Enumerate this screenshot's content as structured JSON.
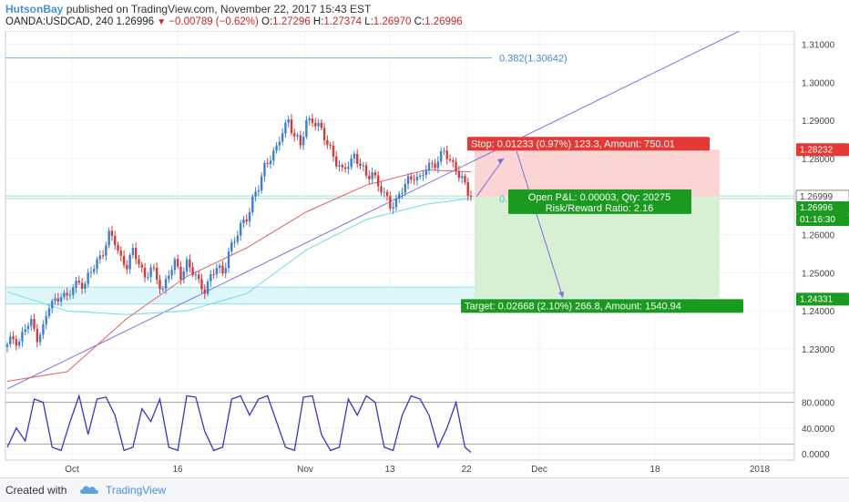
{
  "header": {
    "author": "HutsonBay",
    "published": "published on TradingView.com, November 22, 2017 15:43 EST",
    "symbol": "OANDA:USDCAD, 240",
    "last": "1.26996",
    "change": "−0.00789 (−0.62%)",
    "o_label": "O:",
    "o_value": "1.27296",
    "h_label": "H:",
    "h_value": "1.27374",
    "l_label": "L:",
    "l_value": "1.26970",
    "c_label": "C:",
    "c_value": "1.26996"
  },
  "footer": {
    "created_with": "Created with",
    "brand": "TradingView"
  },
  "chart": {
    "price_ticks": [
      "1.31000",
      "1.30000",
      "1.29000",
      "1.28000",
      "1.27000",
      "1.26000",
      "1.25000",
      "1.24000",
      "1.23000"
    ],
    "osc_ticks": [
      "80.0000",
      "40.0000",
      "0.0000"
    ],
    "time_ticks": [
      "Oct",
      "16",
      "Nov",
      "13",
      "22",
      "Dec",
      "18",
      "2018"
    ],
    "fib_label": "0.382(1.30642)",
    "fib_label_short": "0.",
    "stop_text": "Stop: 0.01233 (0.97%) 123.3, Amount: 750.01",
    "open_pl_text": "Open P&L: 0.00003, Qty: 20275",
    "rr_text": "Risk/Reward Ratio: 2.16",
    "target_text": "Target: 0.02668 (2.10%) 266.8, Amount: 1540.94",
    "price_box_stop": "1.28232",
    "price_box_entry": "1.26999",
    "price_box_last": "1.26996",
    "price_box_countdown": "01:16:30",
    "price_box_target": "1.24331",
    "colors": {
      "up": "#3d7fd1",
      "down": "#d63b3b",
      "ma_red": "#e06060",
      "ma_cyan": "#6fdde6",
      "trend": "#7b6fdc",
      "stoch": "#3535c8",
      "profit_bg": "#d7f0d4",
      "loss_bg": "#fbd4d4",
      "green": "#1a9a1f",
      "red": "#e53935"
    }
  },
  "chart_data": {
    "type": "candlestick",
    "timeframe": "240",
    "symbol": "OANDA:USDCAD",
    "ylim": [
      1.2185,
      1.3135
    ],
    "osc_ylim": [
      -10,
      95
    ],
    "levels": {
      "fib_0_382": 1.30642,
      "stop": 1.28232,
      "entry": 1.26999,
      "last": 1.26996,
      "target": 1.24331
    },
    "close_path": [
      [
        0,
        1.2305
      ],
      [
        2,
        1.233
      ],
      [
        4,
        1.232
      ],
      [
        6,
        1.2355
      ],
      [
        8,
        1.2365
      ],
      [
        10,
        1.2335
      ],
      [
        12,
        1.2355
      ],
      [
        14,
        1.241
      ],
      [
        16,
        1.2425
      ],
      [
        18,
        1.245
      ],
      [
        20,
        1.243
      ],
      [
        22,
        1.246
      ],
      [
        24,
        1.248
      ],
      [
        26,
        1.247
      ],
      [
        28,
        1.25
      ],
      [
        30,
        1.253
      ],
      [
        32,
        1.256
      ],
      [
        34,
        1.2595
      ],
      [
        36,
        1.258
      ],
      [
        38,
        1.254
      ],
      [
        40,
        1.252
      ],
      [
        42,
        1.255
      ],
      [
        44,
        1.253
      ],
      [
        46,
        1.249
      ],
      [
        48,
        1.251
      ],
      [
        50,
        1.248
      ],
      [
        52,
        1.246
      ],
      [
        54,
        1.25
      ],
      [
        56,
        1.252
      ],
      [
        58,
        1.2495
      ],
      [
        60,
        1.253
      ],
      [
        62,
        1.25
      ],
      [
        64,
        1.247
      ],
      [
        66,
        1.246
      ],
      [
        68,
        1.249
      ],
      [
        70,
        1.251
      ],
      [
        72,
        1.25
      ],
      [
        74,
        1.256
      ],
      [
        76,
        1.258
      ],
      [
        78,
        1.262
      ],
      [
        80,
        1.265
      ],
      [
        82,
        1.269
      ],
      [
        84,
        1.272
      ],
      [
        86,
        1.278
      ],
      [
        88,
        1.281
      ],
      [
        90,
        1.282
      ],
      [
        92,
        1.287
      ],
      [
        94,
        1.2905
      ],
      [
        96,
        1.286
      ],
      [
        98,
        1.283
      ],
      [
        100,
        1.29
      ],
      [
        102,
        1.2905
      ],
      [
        104,
        1.288
      ],
      [
        106,
        1.2855
      ],
      [
        108,
        1.283
      ],
      [
        110,
        1.279
      ],
      [
        112,
        1.276
      ],
      [
        114,
        1.279
      ],
      [
        116,
        1.281
      ],
      [
        118,
        1.278
      ],
      [
        120,
        1.275
      ],
      [
        122,
        1.277
      ],
      [
        124,
        1.273
      ],
      [
        126,
        1.27
      ],
      [
        128,
        1.268
      ],
      [
        130,
        1.269
      ],
      [
        132,
        1.2715
      ],
      [
        134,
        1.274
      ],
      [
        136,
        1.276
      ],
      [
        138,
        1.2745
      ],
      [
        140,
        1.277
      ],
      [
        142,
        1.2785
      ],
      [
        144,
        1.28
      ],
      [
        146,
        1.2815
      ],
      [
        148,
        1.279
      ],
      [
        150,
        1.278
      ],
      [
        152,
        1.2745
      ],
      [
        154,
        1.2705
      ],
      [
        155,
        1.26996
      ]
    ],
    "ema_red": [
      [
        0,
        1.2215
      ],
      [
        20,
        1.224
      ],
      [
        40,
        1.238
      ],
      [
        60,
        1.249
      ],
      [
        80,
        1.2565
      ],
      [
        100,
        1.266
      ],
      [
        120,
        1.273
      ],
      [
        140,
        1.277
      ],
      [
        155,
        1.2765
      ]
    ],
    "ma_cyan": [
      [
        0,
        1.245
      ],
      [
        20,
        1.24
      ],
      [
        40,
        1.239
      ],
      [
        60,
        1.24
      ],
      [
        80,
        1.2445
      ],
      [
        100,
        1.256
      ],
      [
        120,
        1.264
      ],
      [
        140,
        1.268
      ],
      [
        155,
        1.2695
      ]
    ],
    "trendline": [
      [
        0,
        1.2195
      ],
      [
        155,
        1.28
      ],
      [
        250,
        1.3155
      ]
    ],
    "stochastic": [
      [
        0,
        10
      ],
      [
        3,
        40
      ],
      [
        6,
        20
      ],
      [
        9,
        85
      ],
      [
        12,
        80
      ],
      [
        15,
        10
      ],
      [
        18,
        5
      ],
      [
        21,
        50
      ],
      [
        24,
        90
      ],
      [
        27,
        30
      ],
      [
        30,
        85
      ],
      [
        33,
        88
      ],
      [
        36,
        60
      ],
      [
        39,
        5
      ],
      [
        42,
        10
      ],
      [
        45,
        70
      ],
      [
        48,
        50
      ],
      [
        51,
        85
      ],
      [
        54,
        10
      ],
      [
        57,
        5
      ],
      [
        60,
        90
      ],
      [
        63,
        88
      ],
      [
        66,
        35
      ],
      [
        69,
        5
      ],
      [
        72,
        10
      ],
      [
        75,
        85
      ],
      [
        78,
        90
      ],
      [
        81,
        60
      ],
      [
        84,
        85
      ],
      [
        87,
        90
      ],
      [
        90,
        50
      ],
      [
        93,
        10
      ],
      [
        96,
        5
      ],
      [
        99,
        88
      ],
      [
        102,
        90
      ],
      [
        105,
        30
      ],
      [
        108,
        5
      ],
      [
        111,
        10
      ],
      [
        114,
        85
      ],
      [
        117,
        60
      ],
      [
        120,
        90
      ],
      [
        123,
        80
      ],
      [
        126,
        10
      ],
      [
        129,
        5
      ],
      [
        132,
        60
      ],
      [
        135,
        90
      ],
      [
        138,
        85
      ],
      [
        141,
        60
      ],
      [
        144,
        10
      ],
      [
        147,
        40
      ],
      [
        150,
        80
      ],
      [
        153,
        10
      ],
      [
        155,
        2
      ]
    ]
  }
}
